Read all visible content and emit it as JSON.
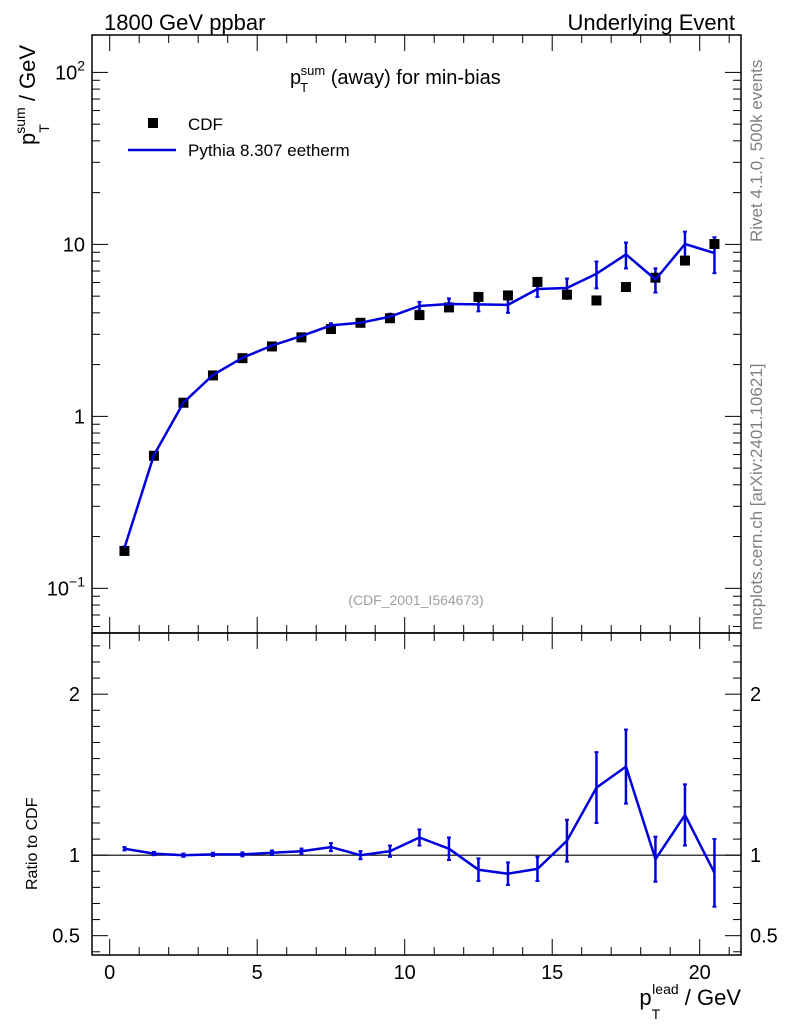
{
  "header": {
    "left": "1800 GeV ppbar",
    "right": "Underlying Event"
  },
  "side_labels": {
    "rivet": "Rivet 4.1.0,  500k events",
    "mcplots": "mcplots.cern.ch [arXiv:2401.10621]"
  },
  "chart_data": [
    {
      "type": "scatter",
      "title": "p_T^sum (away) for min-bias",
      "title_parts": {
        "p": "p",
        "sup": "sum",
        "sub": "T",
        "rest": " (away) for min-bias"
      },
      "ylabel_parts": {
        "p": "p",
        "sup": "sum",
        "sub": "T",
        "rest": " / GeV"
      },
      "yscale": "log",
      "ylim": [
        0.055,
        165
      ],
      "xlim": [
        -0.6,
        21.4
      ],
      "yticks": [
        {
          "value": 0.1,
          "base": "10",
          "exp": "−1"
        },
        {
          "value": 1,
          "label": "1"
        },
        {
          "value": 10,
          "label": "10"
        },
        {
          "value": 100,
          "base": "10",
          "exp": "2"
        }
      ],
      "watermark": "(CDF_2001_I564673)",
      "legend_position": "top-left",
      "series": [
        {
          "name": "CDF",
          "style": "markers",
          "color": "#000000",
          "x": [
            0.5,
            1.5,
            2.5,
            3.5,
            4.5,
            5.5,
            6.5,
            7.5,
            8.5,
            9.5,
            10.5,
            11.5,
            12.5,
            13.5,
            14.5,
            15.5,
            16.5,
            17.5,
            18.5,
            19.5,
            20.5
          ],
          "y": [
            0.165,
            0.59,
            1.2,
            1.73,
            2.18,
            2.55,
            2.88,
            3.22,
            3.5,
            3.72,
            3.88,
            4.3,
            4.95,
            5.05,
            6.05,
            5.1,
            4.72,
            5.65,
            6.4,
            8.05,
            10.05
          ]
        },
        {
          "name": "Pythia 8.307 eetherm",
          "style": "line",
          "color": "#0000dd",
          "x": [
            0.5,
            1.5,
            2.5,
            3.5,
            4.5,
            5.5,
            6.5,
            7.5,
            8.5,
            9.5,
            10.5,
            11.5,
            12.5,
            13.5,
            14.5,
            15.5,
            16.5,
            17.5,
            18.5,
            19.5,
            20.5
          ],
          "y": [
            0.172,
            0.595,
            1.2,
            1.74,
            2.19,
            2.58,
            2.93,
            3.38,
            3.5,
            3.8,
            4.38,
            4.5,
            4.48,
            4.45,
            5.5,
            5.58,
            6.75,
            8.75,
            6.25,
            10.05,
            8.9
          ],
          "yerr": [
            0.003,
            0.008,
            0.012,
            0.02,
            0.03,
            0.04,
            0.05,
            0.1,
            0.1,
            0.15,
            0.25,
            0.35,
            0.4,
            0.45,
            0.55,
            0.75,
            1.2,
            1.5,
            1.0,
            1.8,
            2.1
          ]
        }
      ]
    },
    {
      "type": "line",
      "ylabel": "Ratio to CDF",
      "xlabel_parts": {
        "p": "p",
        "sup": "lead",
        "sub": "T",
        "rest": " / GeV"
      },
      "xlim": [
        -0.6,
        21.4
      ],
      "ylim": [
        0.38,
        2.38
      ],
      "yticks": [
        0.5,
        1,
        2
      ],
      "xticks": [
        0,
        5,
        10,
        15,
        20
      ],
      "reference_line": 1,
      "series": [
        {
          "name": "Pythia 8.307 eetherm / CDF",
          "color": "#0000dd",
          "x": [
            0.5,
            1.5,
            2.5,
            3.5,
            4.5,
            5.5,
            6.5,
            7.5,
            8.5,
            9.5,
            10.5,
            11.5,
            12.5,
            13.5,
            14.5,
            15.5,
            16.5,
            17.5,
            18.5,
            19.5,
            20.5
          ],
          "y": [
            1.04,
            1.01,
            1.0,
            1.005,
            1.005,
            1.015,
            1.025,
            1.05,
            1.0,
            1.025,
            1.11,
            1.04,
            0.91,
            0.885,
            0.915,
            1.09,
            1.42,
            1.55,
            0.975,
            1.25,
            0.89
          ],
          "yerr": [
            0.01,
            0.01,
            0.01,
            0.01,
            0.012,
            0.014,
            0.016,
            0.025,
            0.025,
            0.035,
            0.05,
            0.07,
            0.07,
            0.07,
            0.075,
            0.13,
            0.22,
            0.23,
            0.14,
            0.19,
            0.21
          ]
        }
      ]
    }
  ]
}
